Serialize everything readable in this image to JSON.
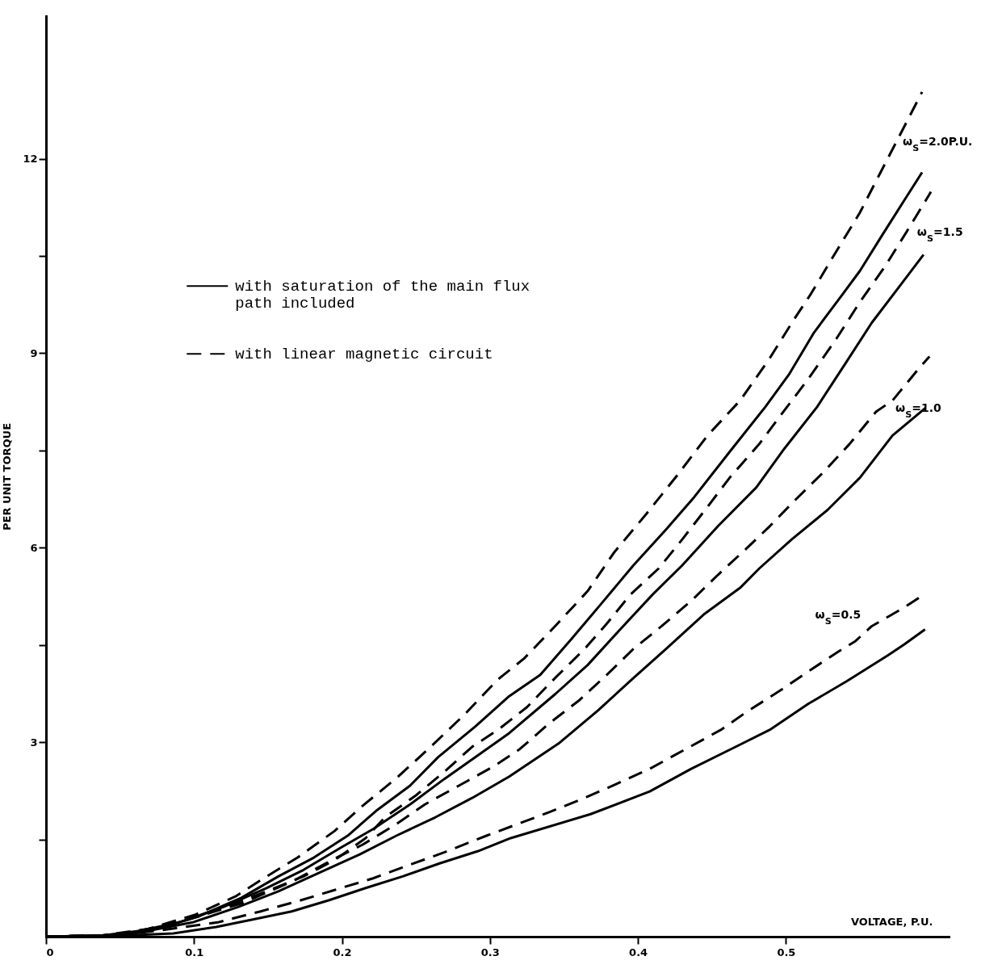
{
  "chart_data": {
    "type": "line",
    "xlabel": "VOLTAGE, P.U.",
    "ylabel": "PER UNIT TORQUE",
    "xlim": [
      0,
      0.61
    ],
    "ylim": [
      0,
      14.2
    ],
    "xticks": [
      0,
      0.1,
      0.2,
      0.3,
      0.4,
      0.5
    ],
    "yticks": [
      {
        "value": 1.5,
        "label": null
      },
      3,
      {
        "value": 4.5,
        "label": null
      },
      6,
      {
        "value": 7.5,
        "label": null
      },
      9,
      {
        "value": 10.5,
        "label": null
      },
      12
    ],
    "grid": false,
    "legend": "top left",
    "marker": "none",
    "series": [
      {
        "name": "with saturation of the main flux path included",
        "color": "#000000",
        "line_style": "solid",
        "x": [
          0,
          0.038,
          0.074,
          0.103,
          0.132,
          0.157,
          0.181,
          0.204,
          0.223,
          0.246,
          0.265,
          0.29,
          0.313,
          0.334,
          0.355,
          0.375,
          0.397,
          0.419,
          0.438,
          0.462,
          0.486,
          0.502,
          0.519,
          0.537,
          0.55,
          0.565,
          0.58,
          0.592
        ],
        "values": [
          0,
          0.02,
          0.12,
          0.31,
          0.6,
          0.93,
          1.22,
          1.56,
          1.94,
          2.33,
          2.77,
          3.24,
          3.71,
          4.04,
          4.59,
          5.13,
          5.73,
          6.28,
          6.78,
          7.48,
          8.17,
          8.67,
          9.32,
          9.87,
          10.27,
          10.82,
          11.36,
          11.79
        ]
      },
      {
        "name": "with linear magnetic circuit",
        "color": "#000000",
        "line_style": "dashed",
        "x": [
          0,
          0.038,
          0.069,
          0.101,
          0.128,
          0.147,
          0.17,
          0.195,
          0.214,
          0.237,
          0.26,
          0.283,
          0.305,
          0.323,
          0.344,
          0.366,
          0.384,
          0.406,
          0.427,
          0.447,
          0.469,
          0.489,
          0.504,
          0.517,
          0.534,
          0.55,
          0.561,
          0.578,
          0.592
        ],
        "values": [
          0,
          0.02,
          0.12,
          0.34,
          0.62,
          0.9,
          1.22,
          1.63,
          2.02,
          2.45,
          2.93,
          3.43,
          3.96,
          4.29,
          4.79,
          5.33,
          5.93,
          6.53,
          7.13,
          7.73,
          8.27,
          8.92,
          9.47,
          9.92,
          10.57,
          11.17,
          11.66,
          12.41,
          13.03
        ]
      },
      {
        "color": "#000000",
        "line_style": "solid",
        "x": [
          0,
          0.04,
          0.059,
          0.09,
          0.12,
          0.149,
          0.174,
          0.199,
          0.221,
          0.246,
          0.269,
          0.292,
          0.313,
          0.344,
          0.366,
          0.388,
          0.41,
          0.43,
          0.454,
          0.48,
          0.499,
          0.521,
          0.541,
          0.558,
          0.578,
          0.593
        ],
        "values": [
          0,
          0.02,
          0.07,
          0.22,
          0.46,
          0.75,
          1.03,
          1.37,
          1.66,
          2.04,
          2.43,
          2.8,
          3.14,
          3.74,
          4.19,
          4.74,
          5.28,
          5.73,
          6.33,
          6.93,
          7.53,
          8.17,
          8.87,
          9.47,
          10.07,
          10.52
        ]
      },
      {
        "color": "#000000",
        "line_style": "dashed",
        "x": [
          0,
          0.04,
          0.059,
          0.09,
          0.122,
          0.149,
          0.174,
          0.195,
          0.216,
          0.229,
          0.25,
          0.269,
          0.288,
          0.306,
          0.325,
          0.344,
          0.364,
          0.379,
          0.395,
          0.414,
          0.43,
          0.447,
          0.462,
          0.482,
          0.499,
          0.515,
          0.534,
          0.55,
          0.567,
          0.582,
          0.598
        ],
        "values": [
          0,
          0.02,
          0.07,
          0.22,
          0.46,
          0.7,
          0.93,
          1.18,
          1.52,
          1.84,
          2.18,
          2.54,
          2.93,
          3.2,
          3.54,
          3.99,
          4.44,
          4.83,
          5.28,
          5.68,
          6.13,
          6.63,
          7.08,
          7.6,
          8.12,
          8.6,
          9.22,
          9.79,
          10.34,
          10.89,
          11.49
        ]
      },
      {
        "color": "#000000",
        "line_style": "solid",
        "x": [
          0,
          0.04,
          0.062,
          0.099,
          0.13,
          0.157,
          0.184,
          0.212,
          0.237,
          0.263,
          0.288,
          0.313,
          0.347,
          0.373,
          0.397,
          0.419,
          0.445,
          0.469,
          0.482,
          0.504,
          0.528,
          0.55,
          0.572,
          0.594
        ],
        "values": [
          0,
          0.02,
          0.06,
          0.22,
          0.46,
          0.7,
          0.98,
          1.27,
          1.56,
          1.84,
          2.14,
          2.47,
          2.99,
          3.49,
          3.99,
          4.44,
          4.98,
          5.38,
          5.68,
          6.13,
          6.58,
          7.08,
          7.73,
          8.15
        ]
      },
      {
        "color": "#000000",
        "line_style": "dashed",
        "x": [
          0,
          0.04,
          0.059,
          0.094,
          0.133,
          0.168,
          0.193,
          0.214,
          0.237,
          0.256,
          0.279,
          0.302,
          0.32,
          0.34,
          0.36,
          0.379,
          0.397,
          0.416,
          0.436,
          0.454,
          0.473,
          0.489,
          0.506,
          0.526,
          0.543,
          0.561,
          0.572,
          0.59,
          0.597
        ],
        "values": [
          0,
          0.02,
          0.06,
          0.25,
          0.52,
          0.87,
          1.18,
          1.42,
          1.74,
          2.04,
          2.33,
          2.62,
          2.89,
          3.29,
          3.64,
          4.04,
          4.44,
          4.79,
          5.18,
          5.58,
          5.98,
          6.33,
          6.73,
          7.18,
          7.6,
          8.1,
          8.27,
          8.77,
          8.95
        ]
      },
      {
        "color": "#000000",
        "line_style": "solid",
        "x": [
          0,
          0.045,
          0.086,
          0.115,
          0.141,
          0.166,
          0.191,
          0.216,
          0.241,
          0.266,
          0.292,
          0.314,
          0.368,
          0.408,
          0.436,
          0.467,
          0.489,
          0.515,
          0.541,
          0.569,
          0.58,
          0.594
        ],
        "values": [
          0,
          0.01,
          0.05,
          0.15,
          0.27,
          0.39,
          0.56,
          0.75,
          0.93,
          1.13,
          1.32,
          1.52,
          1.89,
          2.24,
          2.59,
          2.94,
          3.19,
          3.59,
          3.94,
          4.34,
          4.51,
          4.74
        ]
      },
      {
        "color": "#000000",
        "line_style": "dashed",
        "x": [
          0,
          0.045,
          0.078,
          0.116,
          0.145,
          0.172,
          0.195,
          0.221,
          0.246,
          0.269,
          0.298,
          0.34,
          0.362,
          0.384,
          0.408,
          0.432,
          0.456,
          0.473,
          0.499,
          0.515,
          0.535,
          0.547,
          0.558,
          0.58,
          0.592
        ],
        "values": [
          0,
          0.01,
          0.1,
          0.22,
          0.39,
          0.56,
          0.72,
          0.9,
          1.11,
          1.3,
          1.56,
          1.92,
          2.12,
          2.34,
          2.59,
          2.89,
          3.19,
          3.46,
          3.84,
          4.09,
          4.39,
          4.56,
          4.79,
          5.08,
          5.26
        ]
      }
    ],
    "annotations": [
      "ω$_{S}$=2.0P.U.",
      "ω$_{S}$=1.5",
      "ω$_{S}$=1.0",
      "ω$_{S}$=0.5"
    ]
  }
}
